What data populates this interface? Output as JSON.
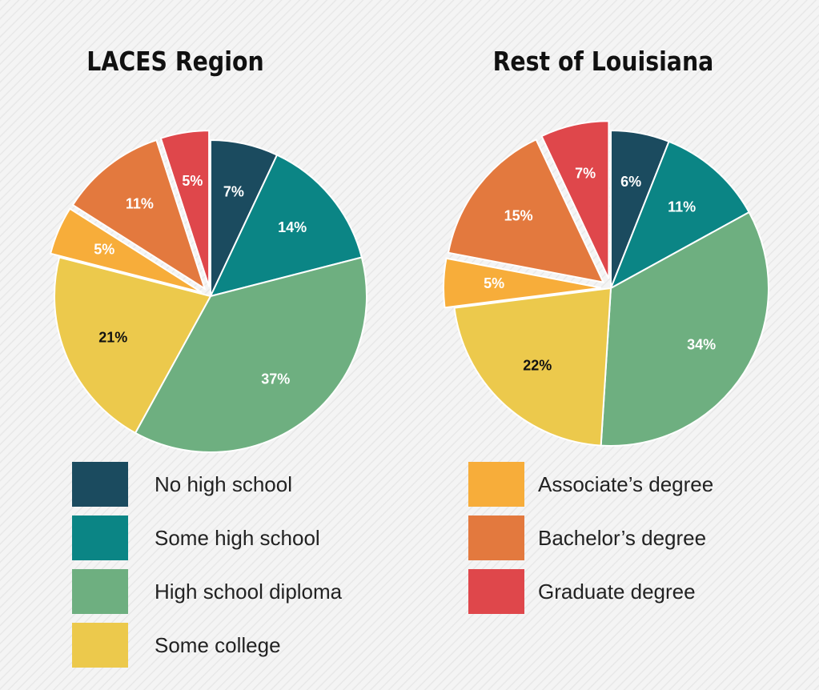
{
  "chart_data": [
    {
      "type": "pie",
      "title": "LACES Region",
      "values": [
        7,
        14,
        37,
        21,
        5,
        11,
        5
      ],
      "value_labels": [
        "7%",
        "14%",
        "37%",
        "21%",
        "5%",
        "11%",
        "5%"
      ],
      "exploded": [
        false,
        false,
        false,
        false,
        true,
        true,
        true
      ]
    },
    {
      "type": "pie",
      "title": "Rest of Louisiana",
      "values": [
        6,
        11,
        34,
        22,
        5,
        15,
        7
      ],
      "value_labels": [
        "6%",
        "11%",
        "34%",
        "22%",
        "5%",
        "15%",
        "7%"
      ],
      "exploded": [
        false,
        false,
        false,
        false,
        true,
        true,
        true
      ]
    }
  ],
  "legend": {
    "categories": [
      "No high school",
      "Some high school",
      "High school diploma",
      "Some college",
      "Associate’s degree",
      "Bachelor’s degree",
      "Graduate degree"
    ],
    "colors": [
      "#1b4b5f",
      "#0b8585",
      "#6eaf80",
      "#ecc94c",
      "#f7ad3a",
      "#e3793e",
      "#df474b"
    ]
  }
}
